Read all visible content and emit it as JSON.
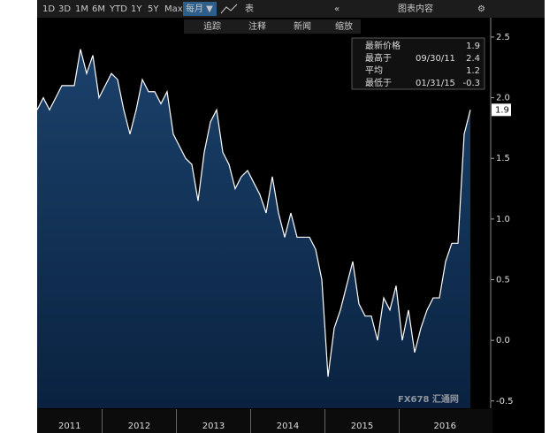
{
  "toolbar": {
    "ranges": [
      "1D",
      "3D",
      "1M",
      "6M",
      "YTD",
      "1Y",
      "5Y",
      "Max"
    ],
    "period": "每月 ▼",
    "table": "表",
    "content": "图表内容",
    "tools": [
      "追踪",
      "注释",
      "新闻",
      "缩放"
    ]
  },
  "watermark": "FX678 汇通网",
  "chart_data": {
    "type": "area",
    "x_labels": [
      "2011",
      "2012",
      "2013",
      "2014",
      "2015",
      "2016"
    ],
    "values": [
      1.9,
      2.0,
      1.9,
      2.0,
      2.1,
      2.1,
      2.1,
      2.4,
      2.2,
      2.35,
      2.0,
      2.1,
      2.2,
      2.15,
      1.9,
      1.7,
      1.9,
      2.15,
      2.05,
      2.05,
      1.95,
      2.05,
      1.7,
      1.6,
      1.5,
      1.45,
      1.15,
      1.55,
      1.8,
      1.9,
      1.55,
      1.45,
      1.25,
      1.35,
      1.4,
      1.3,
      1.2,
      1.05,
      1.35,
      1.05,
      0.85,
      1.05,
      0.85,
      0.85,
      0.85,
      0.75,
      0.5,
      -0.3,
      0.1,
      0.25,
      0.45,
      0.65,
      0.3,
      0.2,
      0.2,
      0.0,
      0.35,
      0.25,
      0.45,
      0.0,
      0.25,
      -0.1,
      0.1,
      0.25,
      0.35,
      0.35,
      0.65,
      0.8,
      0.8,
      1.7,
      1.9
    ],
    "color": "#ffffff",
    "fill": "#0f2f52",
    "ylim": [
      -0.56,
      2.66
    ],
    "yticks": [
      2.5,
      {
        "value": 2,
        "label": "2.0"
      },
      1.5,
      {
        "value": 1,
        "label": "1.0"
      },
      0.5,
      {
        "value": 0,
        "label": "0.0"
      },
      -0.5
    ],
    "last_label": 1.9,
    "legend": [
      {
        "label": "最新价格",
        "value": 1.9
      },
      {
        "label": "最高于",
        "date": "09/30/11",
        "value": 2.4
      },
      {
        "label": "平均",
        "value": 1.2
      },
      {
        "label": "最低于",
        "date": "01/31/15",
        "value": -0.3
      }
    ]
  }
}
